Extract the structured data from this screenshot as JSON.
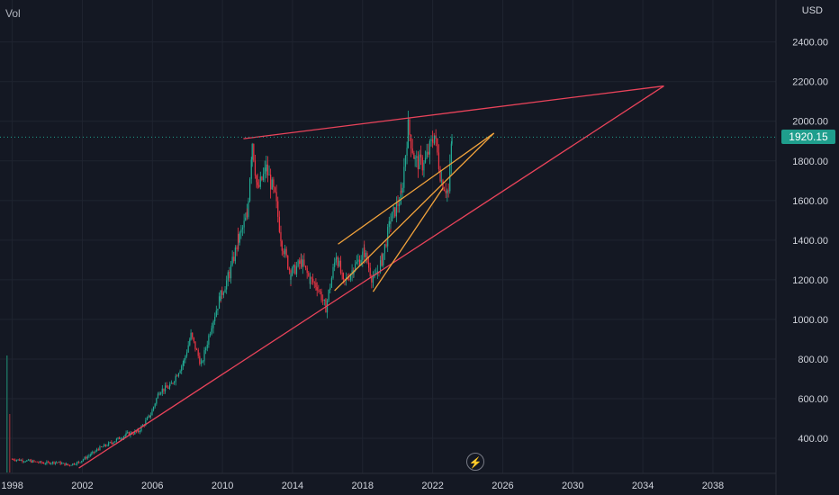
{
  "labels": {
    "vol": "Vol",
    "currency": "USD",
    "last_price": "1920.15"
  },
  "colors": {
    "bg": "#141823",
    "grid": "#1f2430",
    "axis_text": "#d1d4dc",
    "up": "#22ab94",
    "down": "#f23645",
    "trend_red": "#e9435a",
    "trend_orange": "#f2a33c",
    "price_line": "#1f9e8d"
  },
  "icons": {
    "bolt": "lightning-bolt-icon"
  },
  "chart_data": {
    "type": "candlestick",
    "x_axis": {
      "range": [
        1997.3,
        2041.6
      ],
      "ticks": [
        "1998",
        "2002",
        "2006",
        "2010",
        "2014",
        "2018",
        "2022",
        "2026",
        "2030",
        "2034",
        "2038"
      ]
    },
    "y_axis": {
      "range": [
        223,
        2612
      ],
      "ticks": [
        "400.00",
        "600.00",
        "800.00",
        "1000.00",
        "1200.00",
        "1400.00",
        "1600.00",
        "1800.00",
        "2000.00",
        "2200.00",
        "2400.00"
      ],
      "scale": "linear"
    },
    "last_price": 1920.15,
    "series": [
      {
        "values": [
          [
            1998.0,
            295
          ],
          [
            1999.0,
            285
          ],
          [
            1999.8,
            275
          ],
          [
            2000.5,
            280
          ],
          [
            2001.2,
            265
          ],
          [
            2001.8,
            280
          ],
          [
            2002.5,
            320
          ],
          [
            2003.0,
            350
          ],
          [
            2003.7,
            380
          ],
          [
            2004.5,
            420
          ],
          [
            2005.2,
            435
          ],
          [
            2005.9,
            520
          ],
          [
            2006.4,
            640
          ],
          [
            2007.0,
            660
          ],
          [
            2007.8,
            790
          ],
          [
            2008.2,
            920
          ],
          [
            2008.8,
            770
          ],
          [
            2009.4,
            980
          ],
          [
            2009.9,
            1120
          ],
          [
            2010.4,
            1230
          ],
          [
            2010.9,
            1400
          ],
          [
            2011.4,
            1520
          ],
          [
            2011.7,
            1900
          ],
          [
            2012.0,
            1650
          ],
          [
            2012.5,
            1760
          ],
          [
            2013.0,
            1620
          ],
          [
            2013.4,
            1380
          ],
          [
            2013.9,
            1230
          ],
          [
            2014.5,
            1290
          ],
          [
            2015.0,
            1200
          ],
          [
            2015.4,
            1170
          ],
          [
            2015.9,
            1060
          ],
          [
            2016.5,
            1330
          ],
          [
            2016.9,
            1180
          ],
          [
            2017.5,
            1260
          ],
          [
            2018.1,
            1340
          ],
          [
            2018.6,
            1190
          ],
          [
            2019.1,
            1300
          ],
          [
            2019.6,
            1500
          ],
          [
            2020.2,
            1620
          ],
          [
            2020.6,
            1970
          ],
          [
            2021.0,
            1800
          ],
          [
            2021.5,
            1780
          ],
          [
            2022.1,
            1930
          ],
          [
            2022.5,
            1700
          ],
          [
            2022.9,
            1640
          ],
          [
            2023.1,
            1920
          ]
        ]
      }
    ],
    "trendlines": [
      {
        "color": "red",
        "from": [
          2001.8,
          250
        ],
        "to": [
          2035.2,
          2178
        ]
      },
      {
        "color": "red",
        "from": [
          2011.2,
          1912
        ],
        "to": [
          2035.2,
          2178
        ]
      },
      {
        "color": "orange",
        "from": [
          2016.6,
          1380
        ],
        "to": [
          2025.5,
          1940
        ]
      },
      {
        "color": "orange",
        "from": [
          2016.4,
          1145
        ],
        "to": [
          2025.5,
          1940
        ]
      },
      {
        "color": "orange",
        "from": [
          2018.6,
          1140
        ],
        "to": [
          2022.6,
          1665
        ]
      }
    ]
  }
}
